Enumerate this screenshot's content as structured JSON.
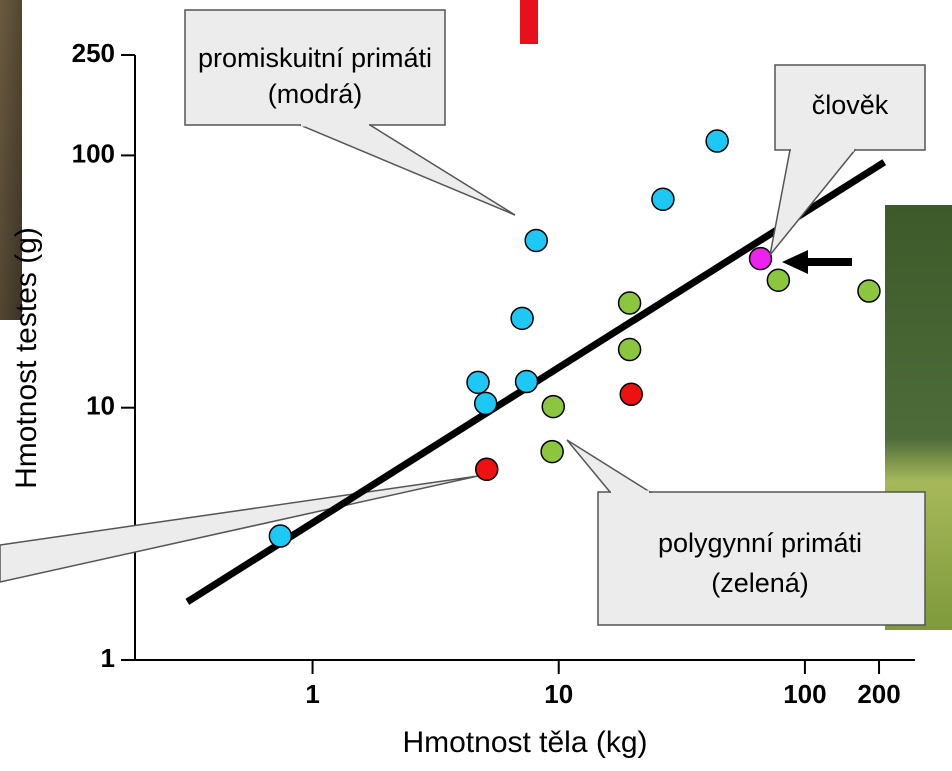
{
  "chart_data": {
    "type": "scatter",
    "xlabel": "Hmotnost těla (kg)",
    "ylabel": "Hmotnost testes (g)",
    "xscale": "log",
    "yscale": "log",
    "xlim": [
      0.19,
      280
    ],
    "ylim": [
      1,
      250
    ],
    "xticks": [
      1,
      10,
      100,
      200
    ],
    "yticks": [
      1,
      10,
      100,
      250
    ],
    "series": [
      {
        "color": "#1ec8f5",
        "x": [
          0.74,
          4.7,
          5.05,
          7.1,
          7.4,
          8.1,
          26.5,
          44
        ],
        "values": [
          3.1,
          12.6,
          10.4,
          22.6,
          12.7,
          46,
          67,
          114
        ]
      },
      {
        "color": "#ee22ee",
        "x": [
          66
        ],
        "values": [
          39
        ]
      },
      {
        "color": "#8cc63f",
        "x": [
          9.5,
          9.4,
          19.4,
          19.4,
          78,
          182
        ],
        "values": [
          10.1,
          6.7,
          26,
          17,
          32,
          29
        ]
      },
      {
        "color": "#ee1111",
        "x": [
          5.1,
          19.7
        ],
        "values": [
          5.7,
          11.3
        ]
      }
    ],
    "trend_line": {
      "color": "#000000",
      "x": [
        0.31,
        210
      ],
      "y": [
        1.7,
        94
      ]
    },
    "annotations": [
      {
        "lines": [
          "promiskuitní primáti",
          "(modrá)"
        ]
      },
      {
        "lines": [
          "člověk"
        ]
      },
      {
        "lines": [
          "polygynní primáti",
          "(zelená)"
        ]
      }
    ]
  }
}
